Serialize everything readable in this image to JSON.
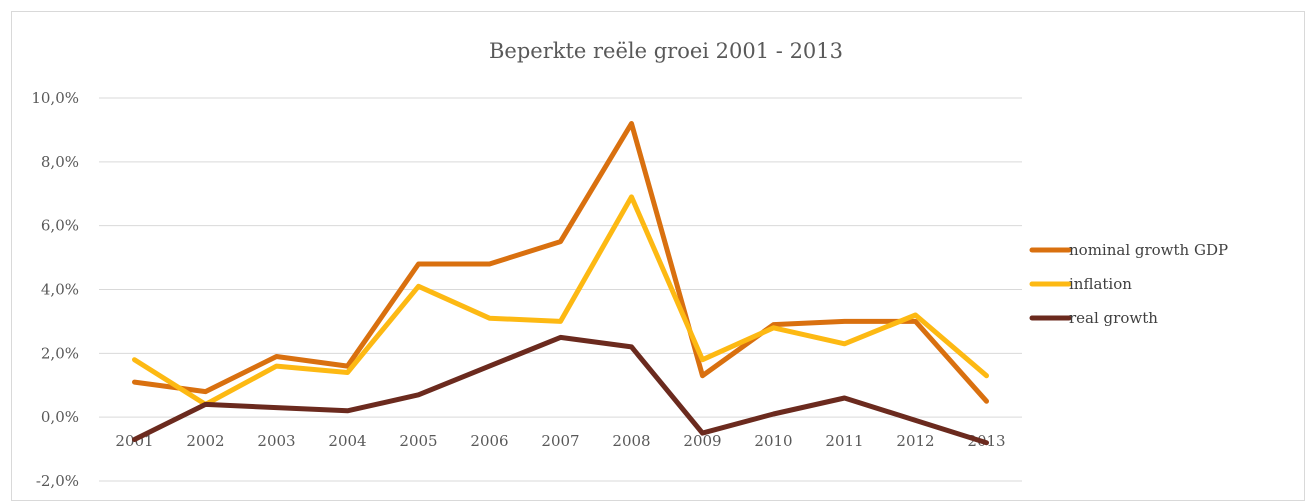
{
  "chart_data": {
    "type": "line",
    "title": "Beperkte reële groei 2001 - 2013",
    "xlabel": "",
    "ylabel": "",
    "categories": [
      "2001",
      "2002",
      "2003",
      "2004",
      "2005",
      "2006",
      "2007",
      "2008",
      "2009",
      "2010",
      "2011",
      "2012",
      "2013"
    ],
    "y_ticks": [
      {
        "value": -2,
        "label": "-2,0%"
      },
      {
        "value": 0,
        "label": "0,0%"
      },
      {
        "value": 2,
        "label": "2,0%"
      },
      {
        "value": 4,
        "label": "4,0%"
      },
      {
        "value": 6,
        "label": "6,0%"
      },
      {
        "value": 8,
        "label": "8,0%"
      },
      {
        "value": 10,
        "label": "10,0%"
      }
    ],
    "ylim": [
      -2,
      10
    ],
    "grid": true,
    "legend_position": "right",
    "series": [
      {
        "name": "nominal growth GDP",
        "color": "#D9700F",
        "values": [
          1.1,
          0.8,
          1.9,
          1.6,
          4.8,
          4.8,
          5.5,
          9.2,
          1.3,
          2.9,
          3.0,
          3.0,
          0.5
        ]
      },
      {
        "name": "inflation",
        "color": "#FDB913",
        "values": [
          1.8,
          0.4,
          1.6,
          1.4,
          4.1,
          3.1,
          3.0,
          6.9,
          1.8,
          2.8,
          2.3,
          3.2,
          1.3
        ]
      },
      {
        "name": "real growth",
        "color": "#6B2A1E",
        "values": [
          -0.7,
          0.4,
          0.3,
          0.2,
          0.7,
          1.6,
          2.5,
          2.2,
          -0.5,
          0.1,
          0.6,
          -0.1,
          -0.8
        ]
      }
    ]
  }
}
